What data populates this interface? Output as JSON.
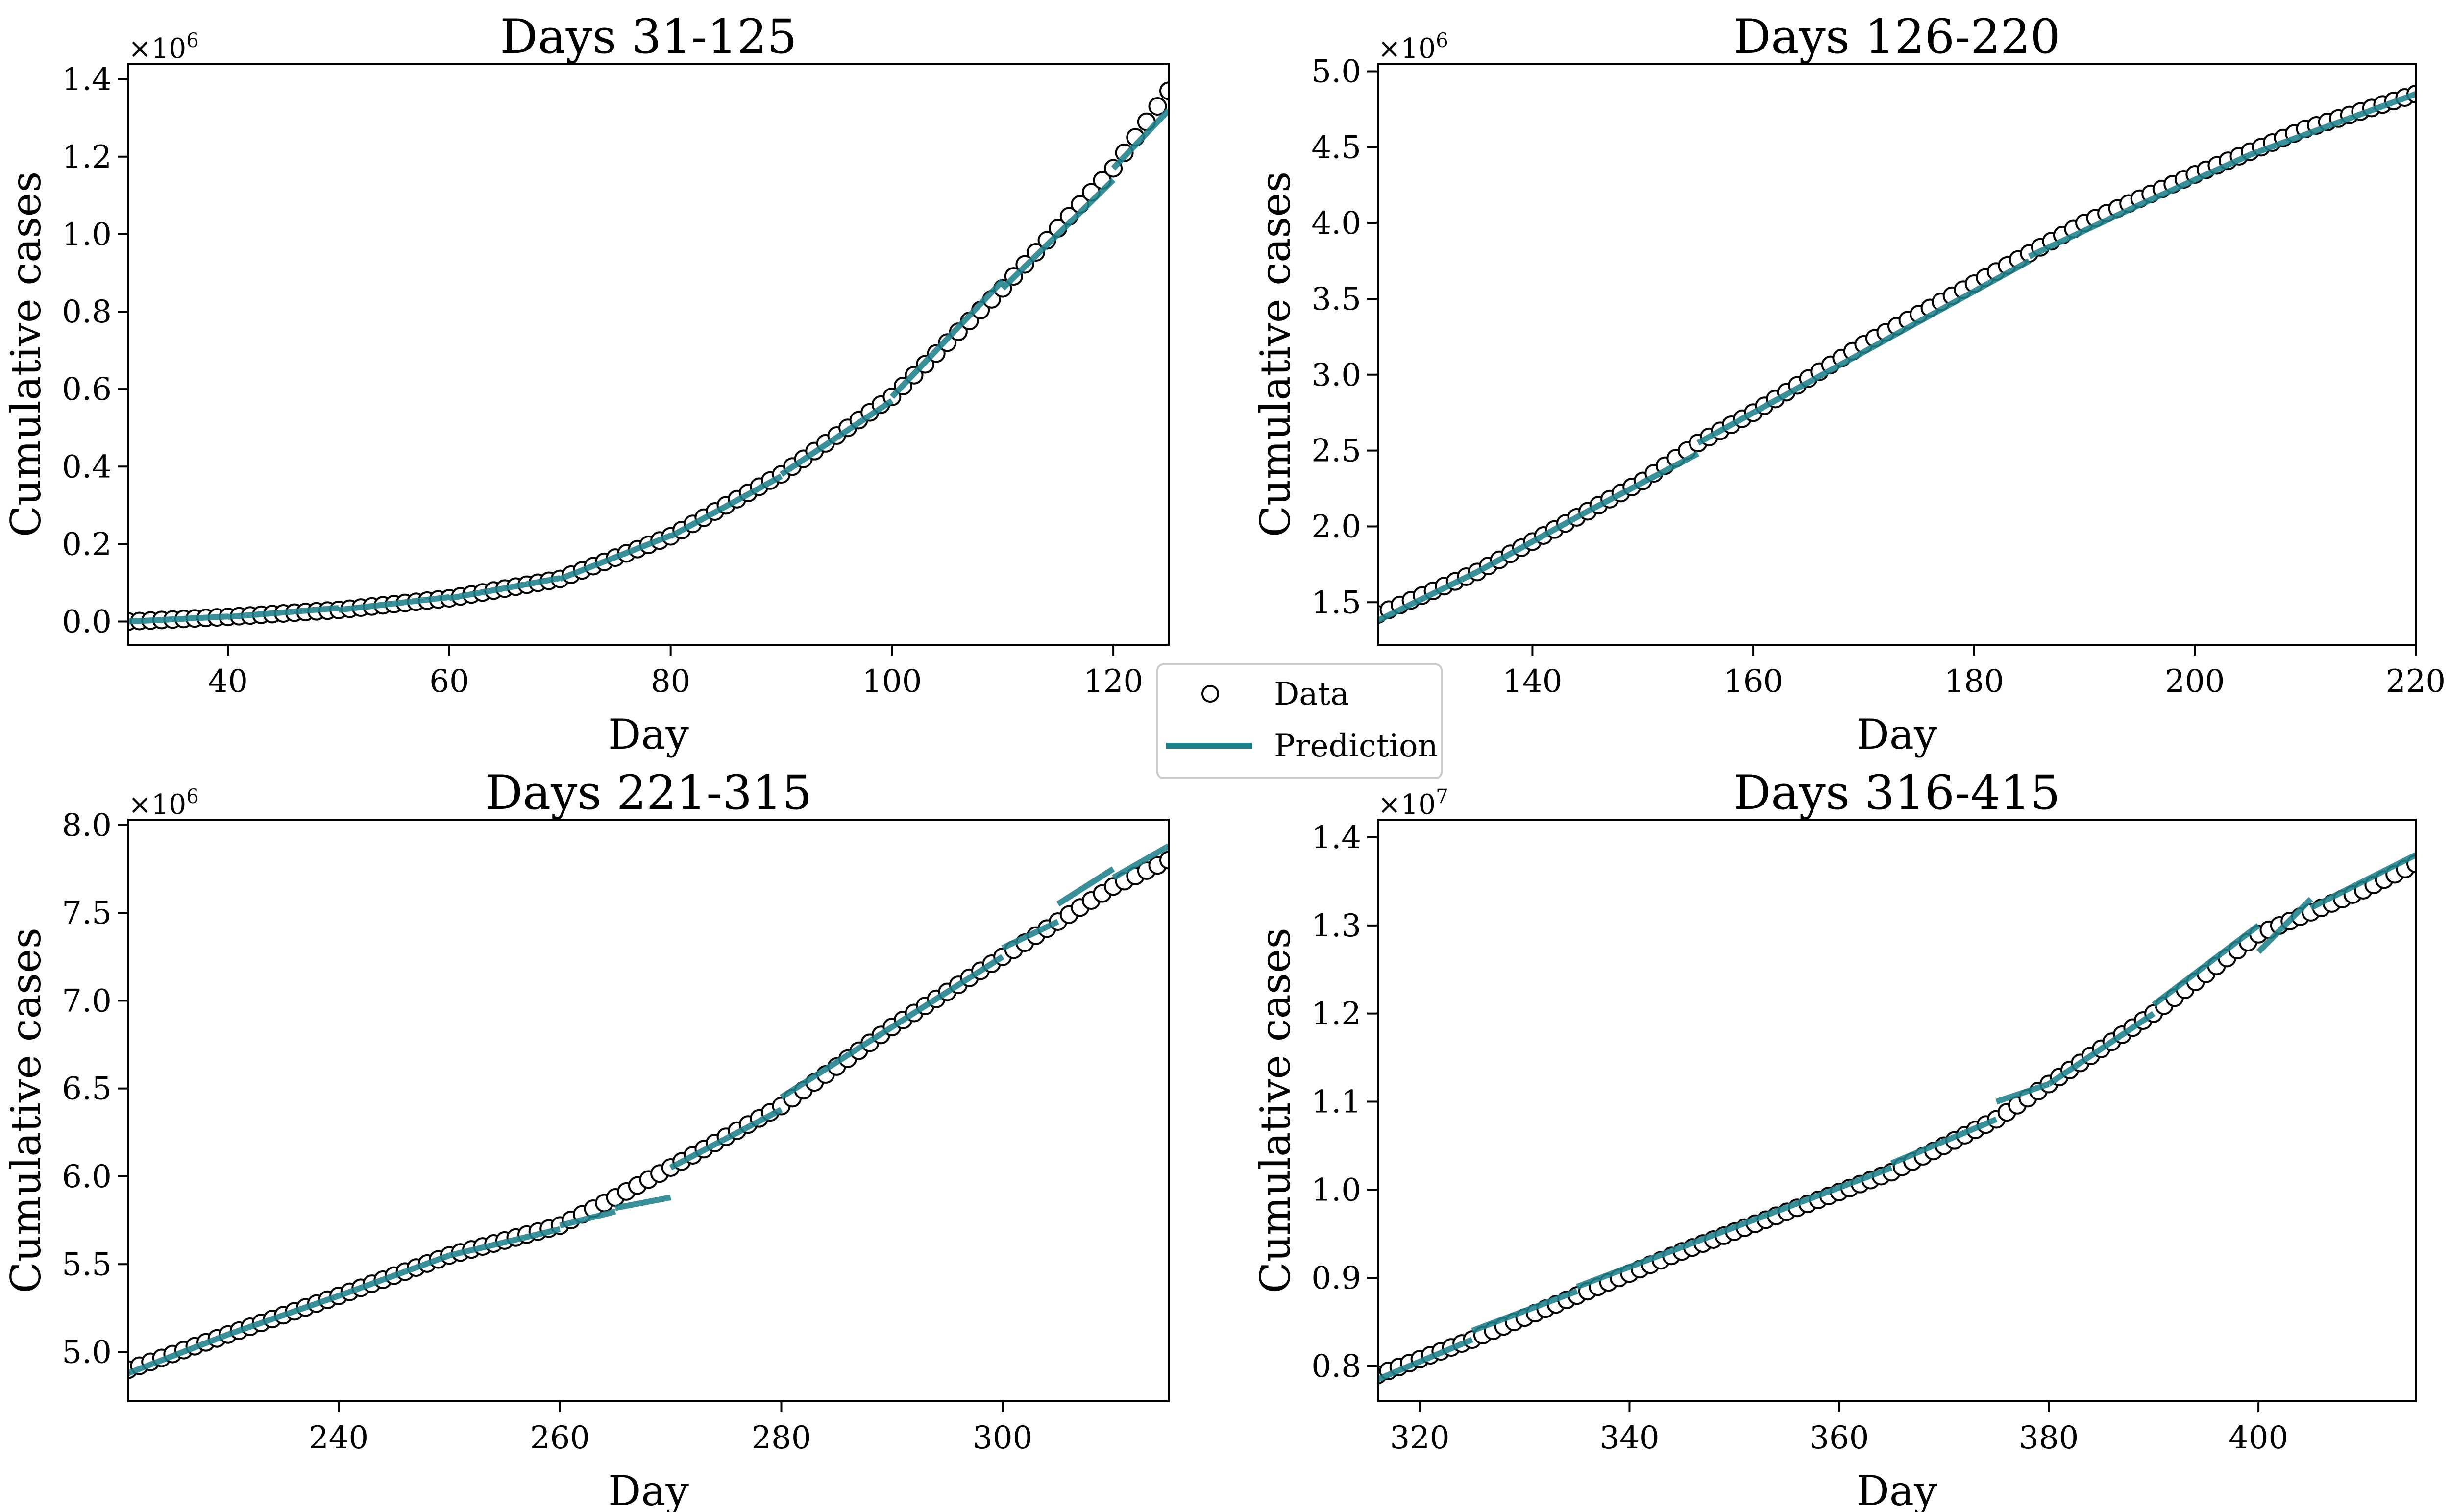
{
  "colors": {
    "prediction": "#1f7f8a",
    "data_edge": "#000000",
    "data_face": "#ffffff"
  },
  "legend": {
    "data_label": "Data",
    "prediction_label": "Prediction",
    "placement": "center"
  },
  "chart_data": [
    {
      "type": "line",
      "title": "Days 31-125",
      "xlabel": "Day",
      "ylabel": "Cumulative cases",
      "multiplier": "×10",
      "multiplier_exp": "6",
      "xlim": [
        31,
        125
      ],
      "ylim": [
        -0.06,
        1.44
      ],
      "xticks": [
        "40",
        "60",
        "80",
        "100",
        "120"
      ],
      "yticks": [
        "0.0",
        "0.2",
        "0.4",
        "0.6",
        "0.8",
        "1.0",
        "1.2",
        "1.4"
      ],
      "unit_scale": 1000000,
      "data_series": {
        "name": "Data",
        "x_start": 31,
        "x_end": 125,
        "anchors_x": [
          31,
          40,
          50,
          60,
          70,
          80,
          90,
          100,
          110,
          120,
          125
        ],
        "anchors_y": [
          0.0,
          0.012,
          0.03,
          0.06,
          0.11,
          0.22,
          0.38,
          0.58,
          0.86,
          1.17,
          1.37
        ]
      },
      "prediction_segments": [
        {
          "x": [
            31,
            40
          ],
          "y": [
            0.0,
            0.013
          ]
        },
        {
          "x": [
            40,
            50
          ],
          "y": [
            0.012,
            0.035
          ]
        },
        {
          "x": [
            50,
            60
          ],
          "y": [
            0.03,
            0.063
          ]
        },
        {
          "x": [
            60,
            70
          ],
          "y": [
            0.06,
            0.112
          ]
        },
        {
          "x": [
            70,
            80
          ],
          "y": [
            0.11,
            0.222
          ]
        },
        {
          "x": [
            80,
            90
          ],
          "y": [
            0.22,
            0.375
          ]
        },
        {
          "x": [
            90,
            100
          ],
          "y": [
            0.38,
            0.57
          ]
        },
        {
          "x": [
            100,
            110
          ],
          "y": [
            0.58,
            0.88
          ]
        },
        {
          "x": [
            110,
            120
          ],
          "y": [
            0.86,
            1.14
          ]
        },
        {
          "x": [
            120,
            125
          ],
          "y": [
            1.17,
            1.32
          ]
        }
      ]
    },
    {
      "type": "line",
      "title": "Days 126-220",
      "xlabel": "Day",
      "ylabel": "Cumulative cases",
      "multiplier": "×10",
      "multiplier_exp": "6",
      "xlim": [
        126,
        220
      ],
      "ylim": [
        1.22,
        5.05
      ],
      "xticks": [
        "140",
        "160",
        "180",
        "200",
        "220"
      ],
      "yticks": [
        "1.5",
        "2.0",
        "2.5",
        "3.0",
        "3.5",
        "4.0",
        "4.5",
        "5.0"
      ],
      "unit_scale": 1000000,
      "data_series": {
        "name": "Data",
        "x_start": 126,
        "x_end": 220,
        "anchors_x": [
          126,
          135,
          145,
          150,
          155,
          160,
          170,
          180,
          190,
          200,
          210,
          220
        ],
        "anchors_y": [
          1.42,
          1.7,
          2.1,
          2.3,
          2.55,
          2.75,
          3.2,
          3.6,
          4.0,
          4.32,
          4.62,
          4.85
        ]
      },
      "prediction_segments": [
        {
          "x": [
            126,
            135
          ],
          "y": [
            1.38,
            1.7
          ]
        },
        {
          "x": [
            135,
            145
          ],
          "y": [
            1.7,
            2.1
          ]
        },
        {
          "x": [
            145,
            155
          ],
          "y": [
            2.1,
            2.48
          ]
        },
        {
          "x": [
            155,
            165
          ],
          "y": [
            2.55,
            2.95
          ]
        },
        {
          "x": [
            165,
            175
          ],
          "y": [
            2.95,
            3.35
          ]
        },
        {
          "x": [
            175,
            185
          ],
          "y": [
            3.35,
            3.75
          ]
        },
        {
          "x": [
            185,
            195
          ],
          "y": [
            3.78,
            4.12
          ]
        },
        {
          "x": [
            195,
            205
          ],
          "y": [
            4.12,
            4.45
          ]
        },
        {
          "x": [
            205,
            220
          ],
          "y": [
            4.45,
            4.85
          ]
        }
      ]
    },
    {
      "type": "line",
      "title": "Days 221-315",
      "xlabel": "Day",
      "ylabel": "Cumulative cases",
      "multiplier": "×10",
      "multiplier_exp": "6",
      "xlim": [
        221,
        315
      ],
      "ylim": [
        4.72,
        8.03
      ],
      "xticks": [
        "240",
        "260",
        "280",
        "300"
      ],
      "yticks": [
        "5.0",
        "5.5",
        "6.0",
        "6.5",
        "7.0",
        "7.5",
        "8.0"
      ],
      "unit_scale": 1000000,
      "data_series": {
        "name": "Data",
        "x_start": 221,
        "x_end": 315,
        "anchors_x": [
          221,
          230,
          240,
          250,
          260,
          265,
          270,
          280,
          290,
          300,
          310,
          315
        ],
        "anchors_y": [
          4.9,
          5.1,
          5.32,
          5.55,
          5.72,
          5.88,
          6.05,
          6.4,
          6.85,
          7.25,
          7.65,
          7.8
        ]
      },
      "prediction_segments": [
        {
          "x": [
            221,
            230
          ],
          "y": [
            4.88,
            5.1
          ]
        },
        {
          "x": [
            230,
            240
          ],
          "y": [
            5.1,
            5.32
          ]
        },
        {
          "x": [
            240,
            250
          ],
          "y": [
            5.32,
            5.55
          ]
        },
        {
          "x": [
            250,
            260
          ],
          "y": [
            5.55,
            5.7
          ]
        },
        {
          "x": [
            260,
            265
          ],
          "y": [
            5.72,
            5.8
          ]
        },
        {
          "x": [
            265,
            270
          ],
          "y": [
            5.82,
            5.88
          ]
        },
        {
          "x": [
            270,
            280
          ],
          "y": [
            6.05,
            6.38
          ]
        },
        {
          "x": [
            280,
            290
          ],
          "y": [
            6.45,
            6.85
          ]
        },
        {
          "x": [
            290,
            300
          ],
          "y": [
            6.85,
            7.25
          ]
        },
        {
          "x": [
            300,
            305
          ],
          "y": [
            7.3,
            7.45
          ]
        },
        {
          "x": [
            305,
            310
          ],
          "y": [
            7.55,
            7.75
          ]
        },
        {
          "x": [
            310,
            315
          ],
          "y": [
            7.7,
            7.88
          ]
        }
      ]
    },
    {
      "type": "line",
      "title": "Days 316-415",
      "xlabel": "Day",
      "ylabel": "Cumulative cases",
      "multiplier": "×10",
      "multiplier_exp": "7",
      "xlim": [
        316,
        415
      ],
      "ylim": [
        0.76,
        1.42
      ],
      "xticks": [
        "320",
        "340",
        "360",
        "380",
        "400"
      ],
      "yticks": [
        "0.8",
        "0.9",
        "1.0",
        "1.1",
        "1.2",
        "1.3",
        "1.4"
      ],
      "unit_scale": 10000000,
      "data_series": {
        "name": "Data",
        "x_start": 316,
        "x_end": 415,
        "anchors_x": [
          316,
          325,
          335,
          345,
          355,
          365,
          375,
          380,
          390,
          400,
          410,
          415
        ],
        "anchors_y": [
          0.79,
          0.83,
          0.88,
          0.93,
          0.975,
          1.02,
          1.08,
          1.12,
          1.2,
          1.29,
          1.34,
          1.37
        ]
      },
      "prediction_segments": [
        {
          "x": [
            316,
            325
          ],
          "y": [
            0.785,
            0.83
          ]
        },
        {
          "x": [
            325,
            335
          ],
          "y": [
            0.84,
            0.885
          ]
        },
        {
          "x": [
            335,
            345
          ],
          "y": [
            0.89,
            0.935
          ]
        },
        {
          "x": [
            345,
            355
          ],
          "y": [
            0.935,
            0.98
          ]
        },
        {
          "x": [
            355,
            365
          ],
          "y": [
            0.98,
            1.025
          ]
        },
        {
          "x": [
            365,
            375
          ],
          "y": [
            1.03,
            1.08
          ]
        },
        {
          "x": [
            375,
            380
          ],
          "y": [
            1.1,
            1.12
          ]
        },
        {
          "x": [
            380,
            390
          ],
          "y": [
            1.12,
            1.2
          ]
        },
        {
          "x": [
            390,
            400
          ],
          "y": [
            1.21,
            1.3
          ]
        },
        {
          "x": [
            400,
            405
          ],
          "y": [
            1.27,
            1.33
          ]
        },
        {
          "x": [
            405,
            415
          ],
          "y": [
            1.32,
            1.38
          ]
        }
      ]
    }
  ]
}
